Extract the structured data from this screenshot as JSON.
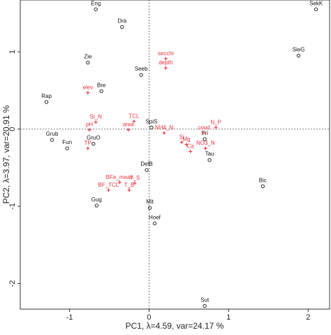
{
  "colors": {
    "sites": "#111111",
    "variables": "#e8323c",
    "axes": "#333333",
    "zero_lines": "#555555"
  },
  "chart_data": {
    "type": "scatter",
    "title": "",
    "xlabel": "PC1, λ=4.59, var=24.17 %",
    "ylabel": "PC2, λ=3.97, var=20.91 %",
    "xlim": [
      -1.62,
      2.27
    ],
    "ylim": [
      -2.33,
      1.67
    ],
    "xticks": [
      -1,
      0,
      1,
      2
    ],
    "yticks": [
      -2,
      -1,
      0,
      1
    ],
    "grid": false,
    "zero_lines": true,
    "series": [
      {
        "name": "",
        "marker": "open-circle",
        "color": "#111111",
        "points": [
          {
            "label": "Eng",
            "x": -0.67,
            "y": 1.55
          },
          {
            "label": "Dra",
            "x": -0.34,
            "y": 1.32
          },
          {
            "label": "SekK",
            "x": 2.1,
            "y": 1.55
          },
          {
            "label": "SieG",
            "x": 1.88,
            "y": 0.95
          },
          {
            "label": "Zie",
            "x": -0.77,
            "y": 0.86
          },
          {
            "label": "Seeb",
            "x": -0.1,
            "y": 0.7
          },
          {
            "label": "Bre",
            "x": -0.6,
            "y": 0.49
          },
          {
            "label": "Rap",
            "x": -1.29,
            "y": 0.35
          },
          {
            "label": "SpiS",
            "x": 0.03,
            "y": 0.02
          },
          {
            "label": "Grub",
            "x": -1.22,
            "y": -0.14
          },
          {
            "label": "Fun",
            "x": -1.03,
            "y": -0.25
          },
          {
            "label": "GruO",
            "x": -0.7,
            "y": -0.19
          },
          {
            "label": "Fri",
            "x": 0.7,
            "y": -0.13
          },
          {
            "label": "Tau",
            "x": 0.76,
            "y": -0.4
          },
          {
            "label": "DelB",
            "x": -0.03,
            "y": -0.53
          },
          {
            "label": "Bic",
            "x": 1.43,
            "y": -0.74
          },
          {
            "label": "Mit",
            "x": 0.01,
            "y": -1.02
          },
          {
            "label": "Gug",
            "x": -0.66,
            "y": -0.99
          },
          {
            "label": "Hoef",
            "x": 0.07,
            "y": -1.22
          },
          {
            "label": "Sut",
            "x": 0.7,
            "y": -2.29
          }
        ]
      },
      {
        "name": "",
        "marker": "plus",
        "color": "#e8323c",
        "points": [
          {
            "label": "secchi",
            "x": 0.21,
            "y": 0.91
          },
          {
            "label": "depth",
            "x": 0.21,
            "y": 0.79
          },
          {
            "label": "elev",
            "x": -0.77,
            "y": 0.47
          },
          {
            "label": "Si_N",
            "x": -0.67,
            "y": 0.09
          },
          {
            "label": "TCL",
            "x": -0.19,
            "y": 0.1
          },
          {
            "label": "pH",
            "x": -0.75,
            "y": -0.01
          },
          {
            "label": "area",
            "x": -0.26,
            "y": -0.01
          },
          {
            "label": "NH4_N",
            "x": 0.19,
            "y": -0.05
          },
          {
            "label": "cond",
            "x": 0.69,
            "y": -0.05
          },
          {
            "label": "N_P",
            "x": 0.84,
            "y": 0.02
          },
          {
            "label": "Si",
            "x": 0.41,
            "y": -0.17
          },
          {
            "label": "Mg",
            "x": 0.47,
            "y": -0.2
          },
          {
            "label": "NO3_N",
            "x": 0.71,
            "y": -0.25
          },
          {
            "label": "TP",
            "x": -0.77,
            "y": -0.25
          },
          {
            "label": "Ca",
            "x": 0.52,
            "y": -0.29
          },
          {
            "label": "BFe_mean",
            "x": -0.37,
            "y": -0.69
          },
          {
            "label": "T_S",
            "x": -0.18,
            "y": -0.7
          },
          {
            "label": "BF_TCL",
            "x": -0.51,
            "y": -0.79
          },
          {
            "label": "T_B",
            "x": -0.25,
            "y": -0.79
          }
        ]
      }
    ]
  }
}
